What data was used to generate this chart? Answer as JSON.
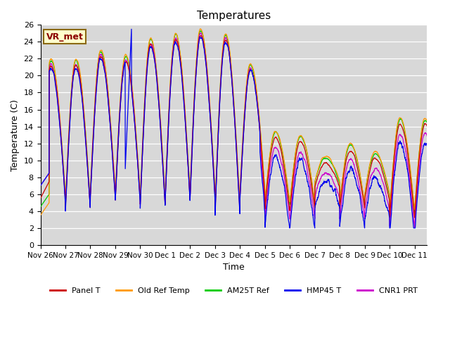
{
  "title": "Temperatures",
  "xlabel": "Time",
  "ylabel": "Temperature (C)",
  "ylim": [
    0,
    26
  ],
  "yticks": [
    0,
    2,
    4,
    6,
    8,
    10,
    12,
    14,
    16,
    18,
    20,
    22,
    24,
    26
  ],
  "bg_color": "#d8d8d8",
  "annotation_text": "VR_met",
  "annotation_box_color": "#ffffcc",
  "annotation_border_color": "#8B6914",
  "series_colors": {
    "Panel T": "#cc0000",
    "Old Ref Temp": "#ff9900",
    "AM25T Ref": "#00cc00",
    "HMP45 T": "#0000ee",
    "CNR1 PRT": "#cc00cc"
  },
  "legend_entries": [
    "Panel T",
    "Old Ref Temp",
    "AM25T Ref",
    "HMP45 T",
    "CNR1 PRT"
  ],
  "x_tick_labels": [
    "Nov 26",
    "Nov 27",
    "Nov 28",
    "Nov 29",
    "Nov 30",
    "Dec 1",
    "Dec 2",
    "Dec 3",
    "Dec 4",
    "Dec 5",
    "Dec 6",
    "Dec 7",
    "Dec 8",
    "Dec 9",
    "Dec 10",
    "Dec 11"
  ],
  "num_days": 15.5
}
